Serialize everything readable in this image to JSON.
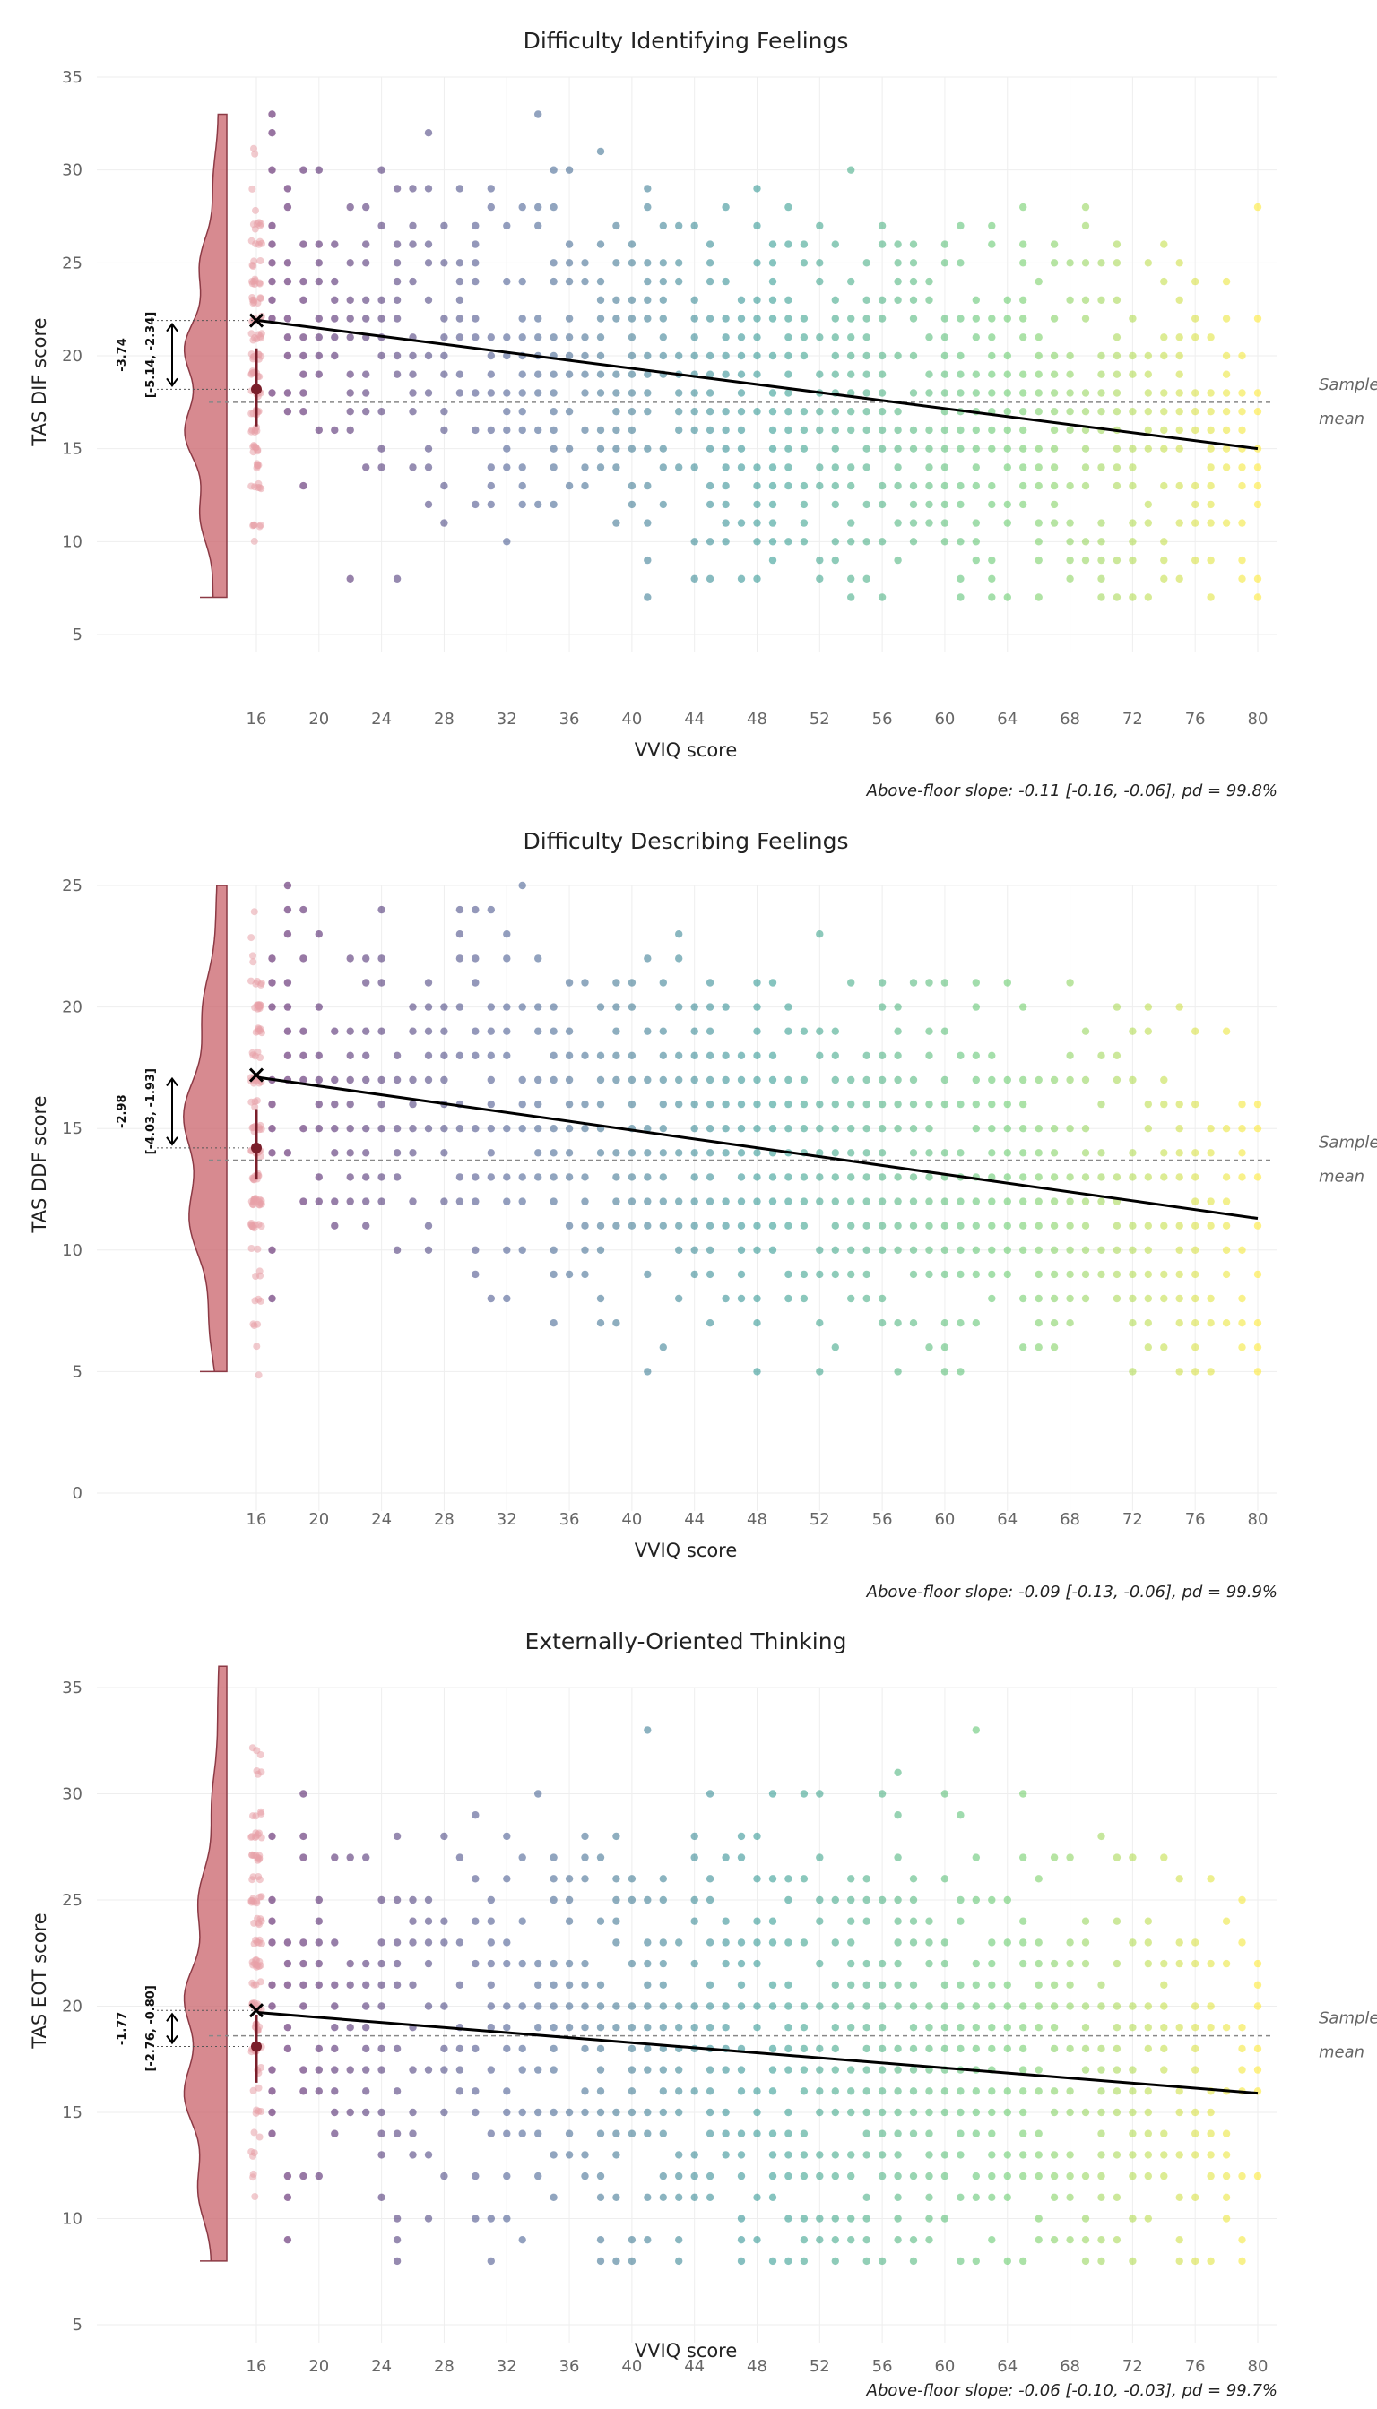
{
  "colors": {
    "distribution": "#c9636b",
    "distribution_outline": "#8c3a45",
    "floor_point": "#e8a0a8",
    "floor_mean": "#7a1f2b",
    "fit_line": "#000000",
    "mean_line": "#888888",
    "gradient": [
      "#440154",
      "#3b528b",
      "#21918c",
      "#5ec962",
      "#fde725"
    ]
  },
  "chart_data": [
    {
      "type": "scatter",
      "title": "Difficulty Identifying Feelings",
      "xlabel": "VVIQ score",
      "ylabel": "TAS DIF score",
      "xticks": [
        16,
        20,
        24,
        28,
        32,
        36,
        40,
        44,
        48,
        52,
        56,
        60,
        64,
        68,
        72,
        76,
        80
      ],
      "yticks": [
        5,
        10,
        15,
        20,
        25,
        30,
        35
      ],
      "ylim": [
        3,
        35
      ],
      "point_range": [
        7,
        33
      ],
      "floor_x": 16,
      "floor_mean": 18.2,
      "floor_ci": [
        16.2,
        20.4
      ],
      "predicted_at_floor": 21.9,
      "fit_line": [
        [
          17,
          21.9
        ],
        [
          80,
          15.0
        ]
      ],
      "sample_mean": 17.5,
      "sample_mean_label": [
        "Sample",
        "mean"
      ],
      "effect_label": "-3.74",
      "effect_ci_label": "[-5.14, -2.34]",
      "caption": "Above-floor slope: -0.11 [-0.16, -0.06], pd = 99.8%",
      "grid": true
    },
    {
      "type": "scatter",
      "title": "Difficulty Describing Feelings",
      "xlabel": "VVIQ score",
      "ylabel": "TAS DDF score",
      "xticks": [
        16,
        20,
        24,
        28,
        32,
        36,
        40,
        44,
        48,
        52,
        56,
        60,
        64,
        68,
        72,
        76,
        80
      ],
      "yticks": [
        0,
        5,
        10,
        15,
        20,
        25
      ],
      "ylim": [
        0,
        25
      ],
      "point_range": [
        5,
        25
      ],
      "floor_x": 16,
      "floor_mean": 14.2,
      "floor_ci": [
        12.9,
        15.8
      ],
      "predicted_at_floor": 17.2,
      "fit_line": [
        [
          17,
          17.1
        ],
        [
          80,
          11.3
        ]
      ],
      "sample_mean": 13.7,
      "sample_mean_label": [
        "Sample",
        "mean"
      ],
      "effect_label": "-2.98",
      "effect_ci_label": "[-4.03, -1.93]",
      "caption": "Above-floor slope: -0.09 [-0.13, -0.06], pd = 99.9%",
      "grid": true
    },
    {
      "type": "scatter",
      "title": "Externally-Oriented Thinking",
      "xlabel": "VVIQ score",
      "ylabel": "TAS EOT score",
      "xticks": [
        16,
        20,
        24,
        28,
        32,
        36,
        40,
        44,
        48,
        52,
        56,
        60,
        64,
        68,
        72,
        76,
        80
      ],
      "yticks": [
        5,
        10,
        15,
        20,
        25,
        30,
        35
      ],
      "ylim": [
        3,
        35
      ],
      "point_range": [
        8,
        36
      ],
      "floor_x": 16,
      "floor_mean": 18.1,
      "floor_ci": [
        16.4,
        19.6
      ],
      "predicted_at_floor": 19.8,
      "fit_line": [
        [
          17,
          19.7
        ],
        [
          80,
          15.9
        ]
      ],
      "sample_mean": 18.6,
      "sample_mean_label": [
        "Sample",
        "mean"
      ],
      "effect_label": "-1.77",
      "effect_ci_label": "[-2.76, -0.80]",
      "caption": "Above-floor slope: -0.06 [-0.10, -0.03], pd = 99.7%",
      "grid": true
    }
  ]
}
